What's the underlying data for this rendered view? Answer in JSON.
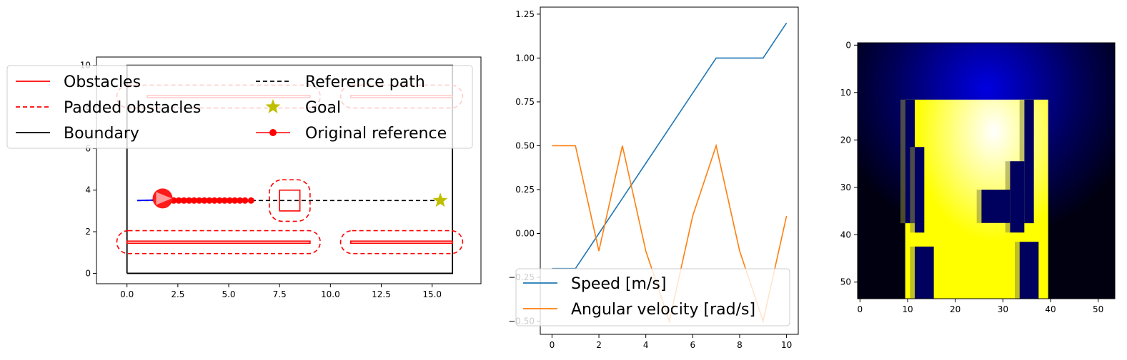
{
  "chart_data": [
    {
      "type": "line",
      "panel": "map",
      "xlim": [
        -1.5,
        17.4
      ],
      "ylim": [
        -0.5,
        10.4
      ],
      "xticks": [
        "0.0",
        "2.5",
        "5.0",
        "7.5",
        "10.0",
        "12.5",
        "15.0"
      ],
      "yticks": [
        "0",
        "2",
        "4",
        "6",
        "8",
        "10"
      ],
      "grid": false,
      "legend_position": "upper-left (overlapping)",
      "legend": [
        "Obstacles",
        "Padded obstacles",
        "Boundary",
        "Reference path",
        "Goal",
        "Original reference"
      ],
      "boundary": [
        [
          0,
          0
        ],
        [
          16,
          0
        ],
        [
          16,
          10
        ],
        [
          0,
          10
        ],
        [
          0,
          0
        ]
      ],
      "obstacles": [
        {
          "x0": 0,
          "x1": 9,
          "y0": 1.45,
          "y1": 1.55
        },
        {
          "x0": 11,
          "x1": 16,
          "y0": 1.45,
          "y1": 1.55
        },
        {
          "x0": 1,
          "x1": 9,
          "y0": 8.45,
          "y1": 8.55
        },
        {
          "x0": 11,
          "x1": 16,
          "y0": 8.45,
          "y1": 8.55
        },
        {
          "x0": 7.5,
          "x1": 8.5,
          "y0": 3.0,
          "y1": 4.0
        }
      ],
      "padded_obstacles": [
        {
          "x0": -0.5,
          "x1": 9.5,
          "y0": 0.95,
          "y1": 2.05
        },
        {
          "x0": 10.5,
          "x1": 16.5,
          "y0": 0.95,
          "y1": 2.05
        },
        {
          "x0": -0.5,
          "x1": 9.5,
          "y0": 7.95,
          "y1": 9.05
        },
        {
          "x0": 10.5,
          "x1": 16.5,
          "y0": 7.95,
          "y1": 9.05
        },
        {
          "x0": 7.0,
          "x1": 9.0,
          "y0": 2.5,
          "y1": 4.5
        }
      ],
      "reference_path": {
        "x": [
          0.5,
          15.4
        ],
        "y": [
          3.5,
          3.5
        ]
      },
      "goal": {
        "x": 15.4,
        "y": 3.5
      },
      "original_reference": {
        "x": [
          1.8,
          2.05,
          2.3,
          2.55,
          2.8,
          3.05,
          3.3,
          3.55,
          3.8,
          4.05,
          4.3,
          4.55,
          4.8,
          5.05,
          5.3,
          5.55,
          5.8,
          6.1
        ],
        "y": [
          3.5,
          3.5,
          3.5,
          3.5,
          3.5,
          3.5,
          3.5,
          3.5,
          3.5,
          3.5,
          3.5,
          3.5,
          3.5,
          3.5,
          3.5,
          3.5,
          3.5,
          3.5
        ]
      },
      "robot": {
        "x": 1.75,
        "y": 3.6,
        "heading_deg": 0
      },
      "trajectory": {
        "x": [
          0.5,
          1.2,
          1.75
        ],
        "y": [
          3.5,
          3.52,
          3.6
        ]
      },
      "colors": {
        "obstacle": "#ff0000",
        "boundary": "#000000",
        "goal": "#bfbf00",
        "trajectory": "#0000ff"
      }
    },
    {
      "type": "line",
      "panel": "actions",
      "xlim": [
        -0.5,
        10.5
      ],
      "ylim": [
        -0.575,
        1.29
      ],
      "xticks": [
        "0",
        "2",
        "4",
        "6",
        "8",
        "10"
      ],
      "yticks": [
        "−0.50",
        "−0.25",
        "0.00",
        "0.25",
        "0.50",
        "0.75",
        "1.00",
        "1.25"
      ],
      "grid": false,
      "legend_position": "lower-left",
      "series": [
        {
          "name": "Speed [m/s]",
          "color": "#1f77b4",
          "x": [
            0,
            1,
            2,
            3,
            4,
            5,
            6,
            7,
            8,
            9,
            10
          ],
          "values": [
            -0.2,
            -0.2,
            0.0,
            0.2,
            0.4,
            0.6,
            0.8,
            1.0,
            1.0,
            1.0,
            1.2
          ]
        },
        {
          "name": "Angular velocity [rad/s]",
          "color": "#ff7f0e",
          "x": [
            0,
            1,
            2,
            3,
            4,
            5,
            6,
            7,
            8,
            9,
            10
          ],
          "values": [
            0.5,
            0.5,
            -0.1,
            0.5,
            -0.1,
            -0.5,
            0.1,
            0.5,
            -0.1,
            -0.5,
            0.1
          ]
        }
      ]
    },
    {
      "type": "heatmap",
      "panel": "cost-map",
      "xlim": [
        -0.5,
        53.5
      ],
      "ylim": [
        53.5,
        -0.5
      ],
      "xticks": [
        "0",
        "10",
        "20",
        "30",
        "40",
        "50"
      ],
      "yticks": [
        "0",
        "10",
        "20",
        "30",
        "40",
        "50"
      ],
      "grid": false,
      "colors": {
        "background": "#000010",
        "bright": "#ffff00",
        "glow": "#0000d0"
      },
      "free_region": {
        "x0": 10,
        "x1": 40,
        "y0": 12,
        "y1": 54
      },
      "blocked_cells": [
        {
          "x0": 10,
          "x1": 12,
          "y0": 12,
          "y1": 38
        },
        {
          "x0": 12,
          "x1": 14,
          "y0": 22,
          "y1": 40
        },
        {
          "x0": 35,
          "x1": 37,
          "y0": 12,
          "y1": 38
        },
        {
          "x0": 32,
          "x1": 35,
          "y0": 25,
          "y1": 40
        },
        {
          "x0": 26,
          "x1": 32,
          "y0": 31,
          "y1": 38
        },
        {
          "x0": 12,
          "x1": 16,
          "y0": 43,
          "y1": 54
        },
        {
          "x0": 34,
          "x1": 38,
          "y0": 42,
          "y1": 54
        }
      ]
    }
  ],
  "legends": {
    "map": [
      {
        "label": "Obstacles",
        "style": "solid",
        "color": "#ff0000"
      },
      {
        "label": "Padded obstacles",
        "style": "dashed",
        "color": "#ff0000"
      },
      {
        "label": "Boundary",
        "style": "solid",
        "color": "#000000"
      },
      {
        "label": "Reference path",
        "style": "dashed",
        "color": "#000000"
      },
      {
        "label": "Goal",
        "style": "star",
        "color": "#bfbf00"
      },
      {
        "label": "Original reference",
        "style": "dot-line",
        "color": "#ff0000"
      }
    ],
    "actions": [
      {
        "label": "Speed [m/s]",
        "color": "#1f77b4"
      },
      {
        "label": "Angular velocity [rad/s]",
        "color": "#ff7f0e"
      }
    ]
  }
}
